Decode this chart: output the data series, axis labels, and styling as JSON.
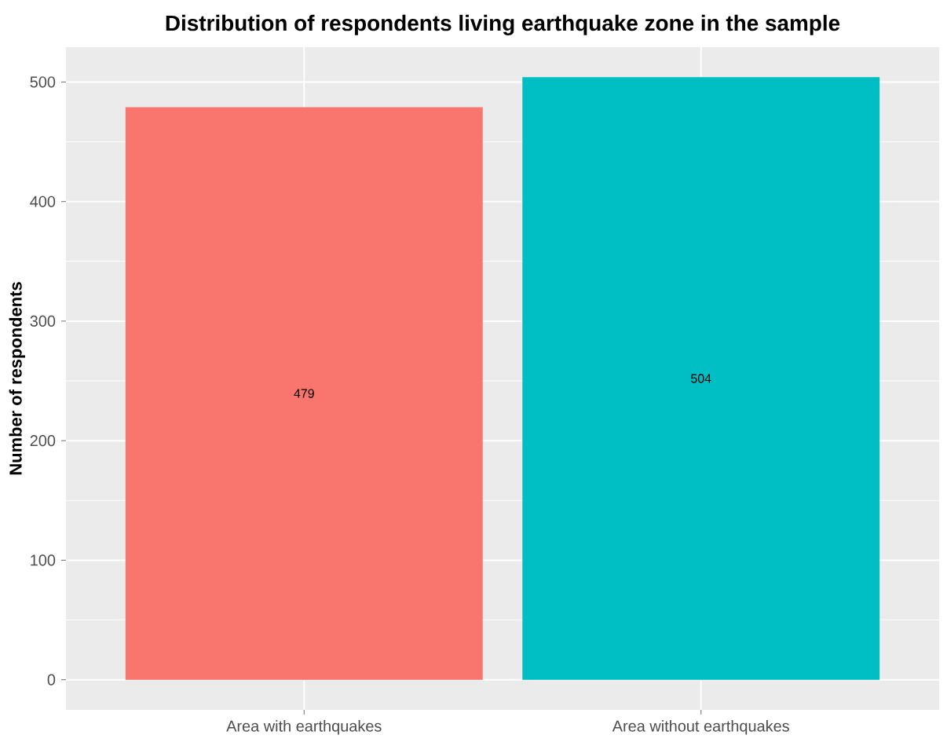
{
  "chart_data": {
    "type": "bar",
    "title": "Distribution of respondents living earthquake zone in the sample",
    "ylabel": "Number of respondents",
    "categories": [
      "Area with earthquakes",
      "Area without earthquakes"
    ],
    "values": [
      479,
      504
    ],
    "colors": [
      "#f8766d",
      "#00bfc4"
    ],
    "ylim": [
      -25.2,
      529.2
    ],
    "yticks": [
      0,
      100,
      200,
      300,
      400,
      500
    ],
    "grid": true,
    "data_labels": true
  }
}
